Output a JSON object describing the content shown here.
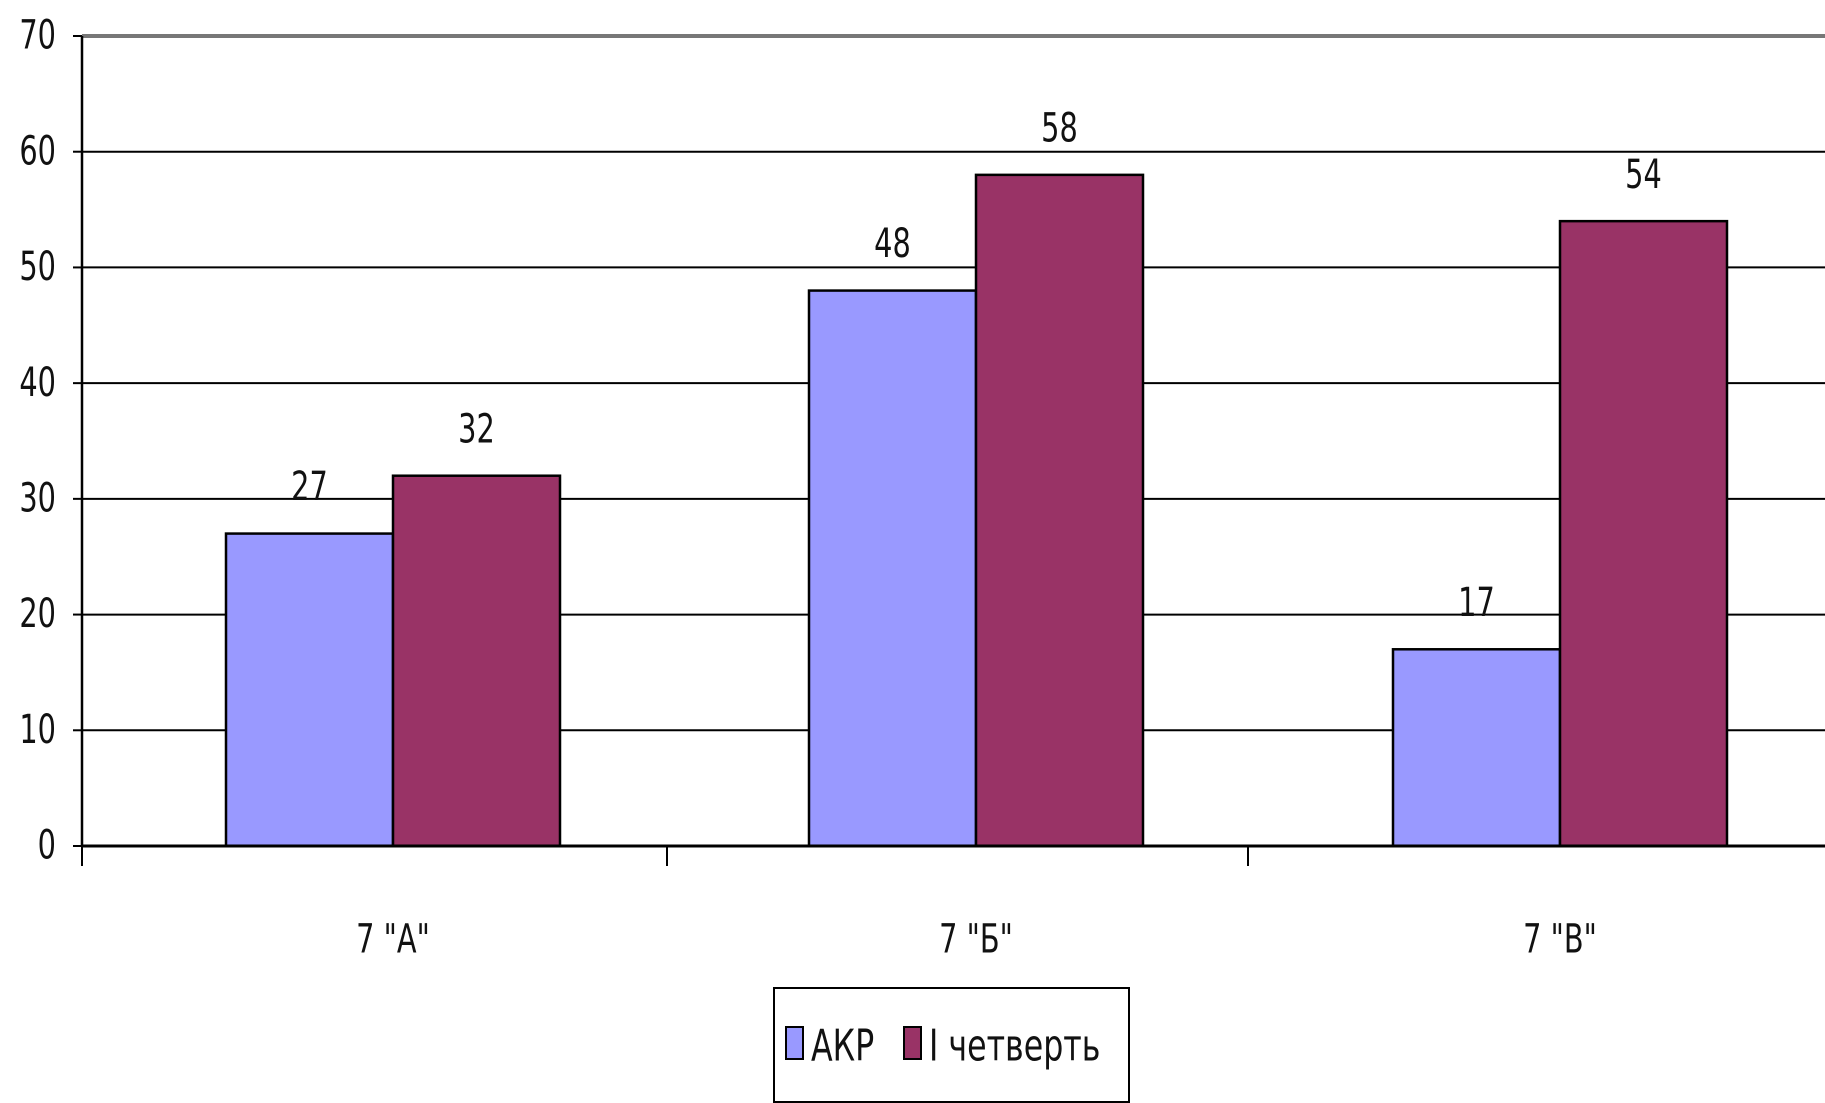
{
  "chart_data": {
    "type": "bar",
    "categories": [
      "7 \"А\"",
      "7 \"Б\"",
      "7 \"В\""
    ],
    "series": [
      {
        "name": "АКР",
        "values": [
          27,
          48,
          17
        ],
        "color": "#9999ff"
      },
      {
        "name": "І четверть",
        "values": [
          32,
          58,
          54
        ],
        "color": "#993366"
      }
    ],
    "data_labels": true,
    "ylim": [
      0,
      70
    ],
    "y_ticks": [
      0,
      10,
      20,
      30,
      40,
      50,
      60,
      70
    ],
    "grid": true,
    "legend_position": "bottom",
    "title": "",
    "xlabel": "",
    "ylabel": ""
  }
}
